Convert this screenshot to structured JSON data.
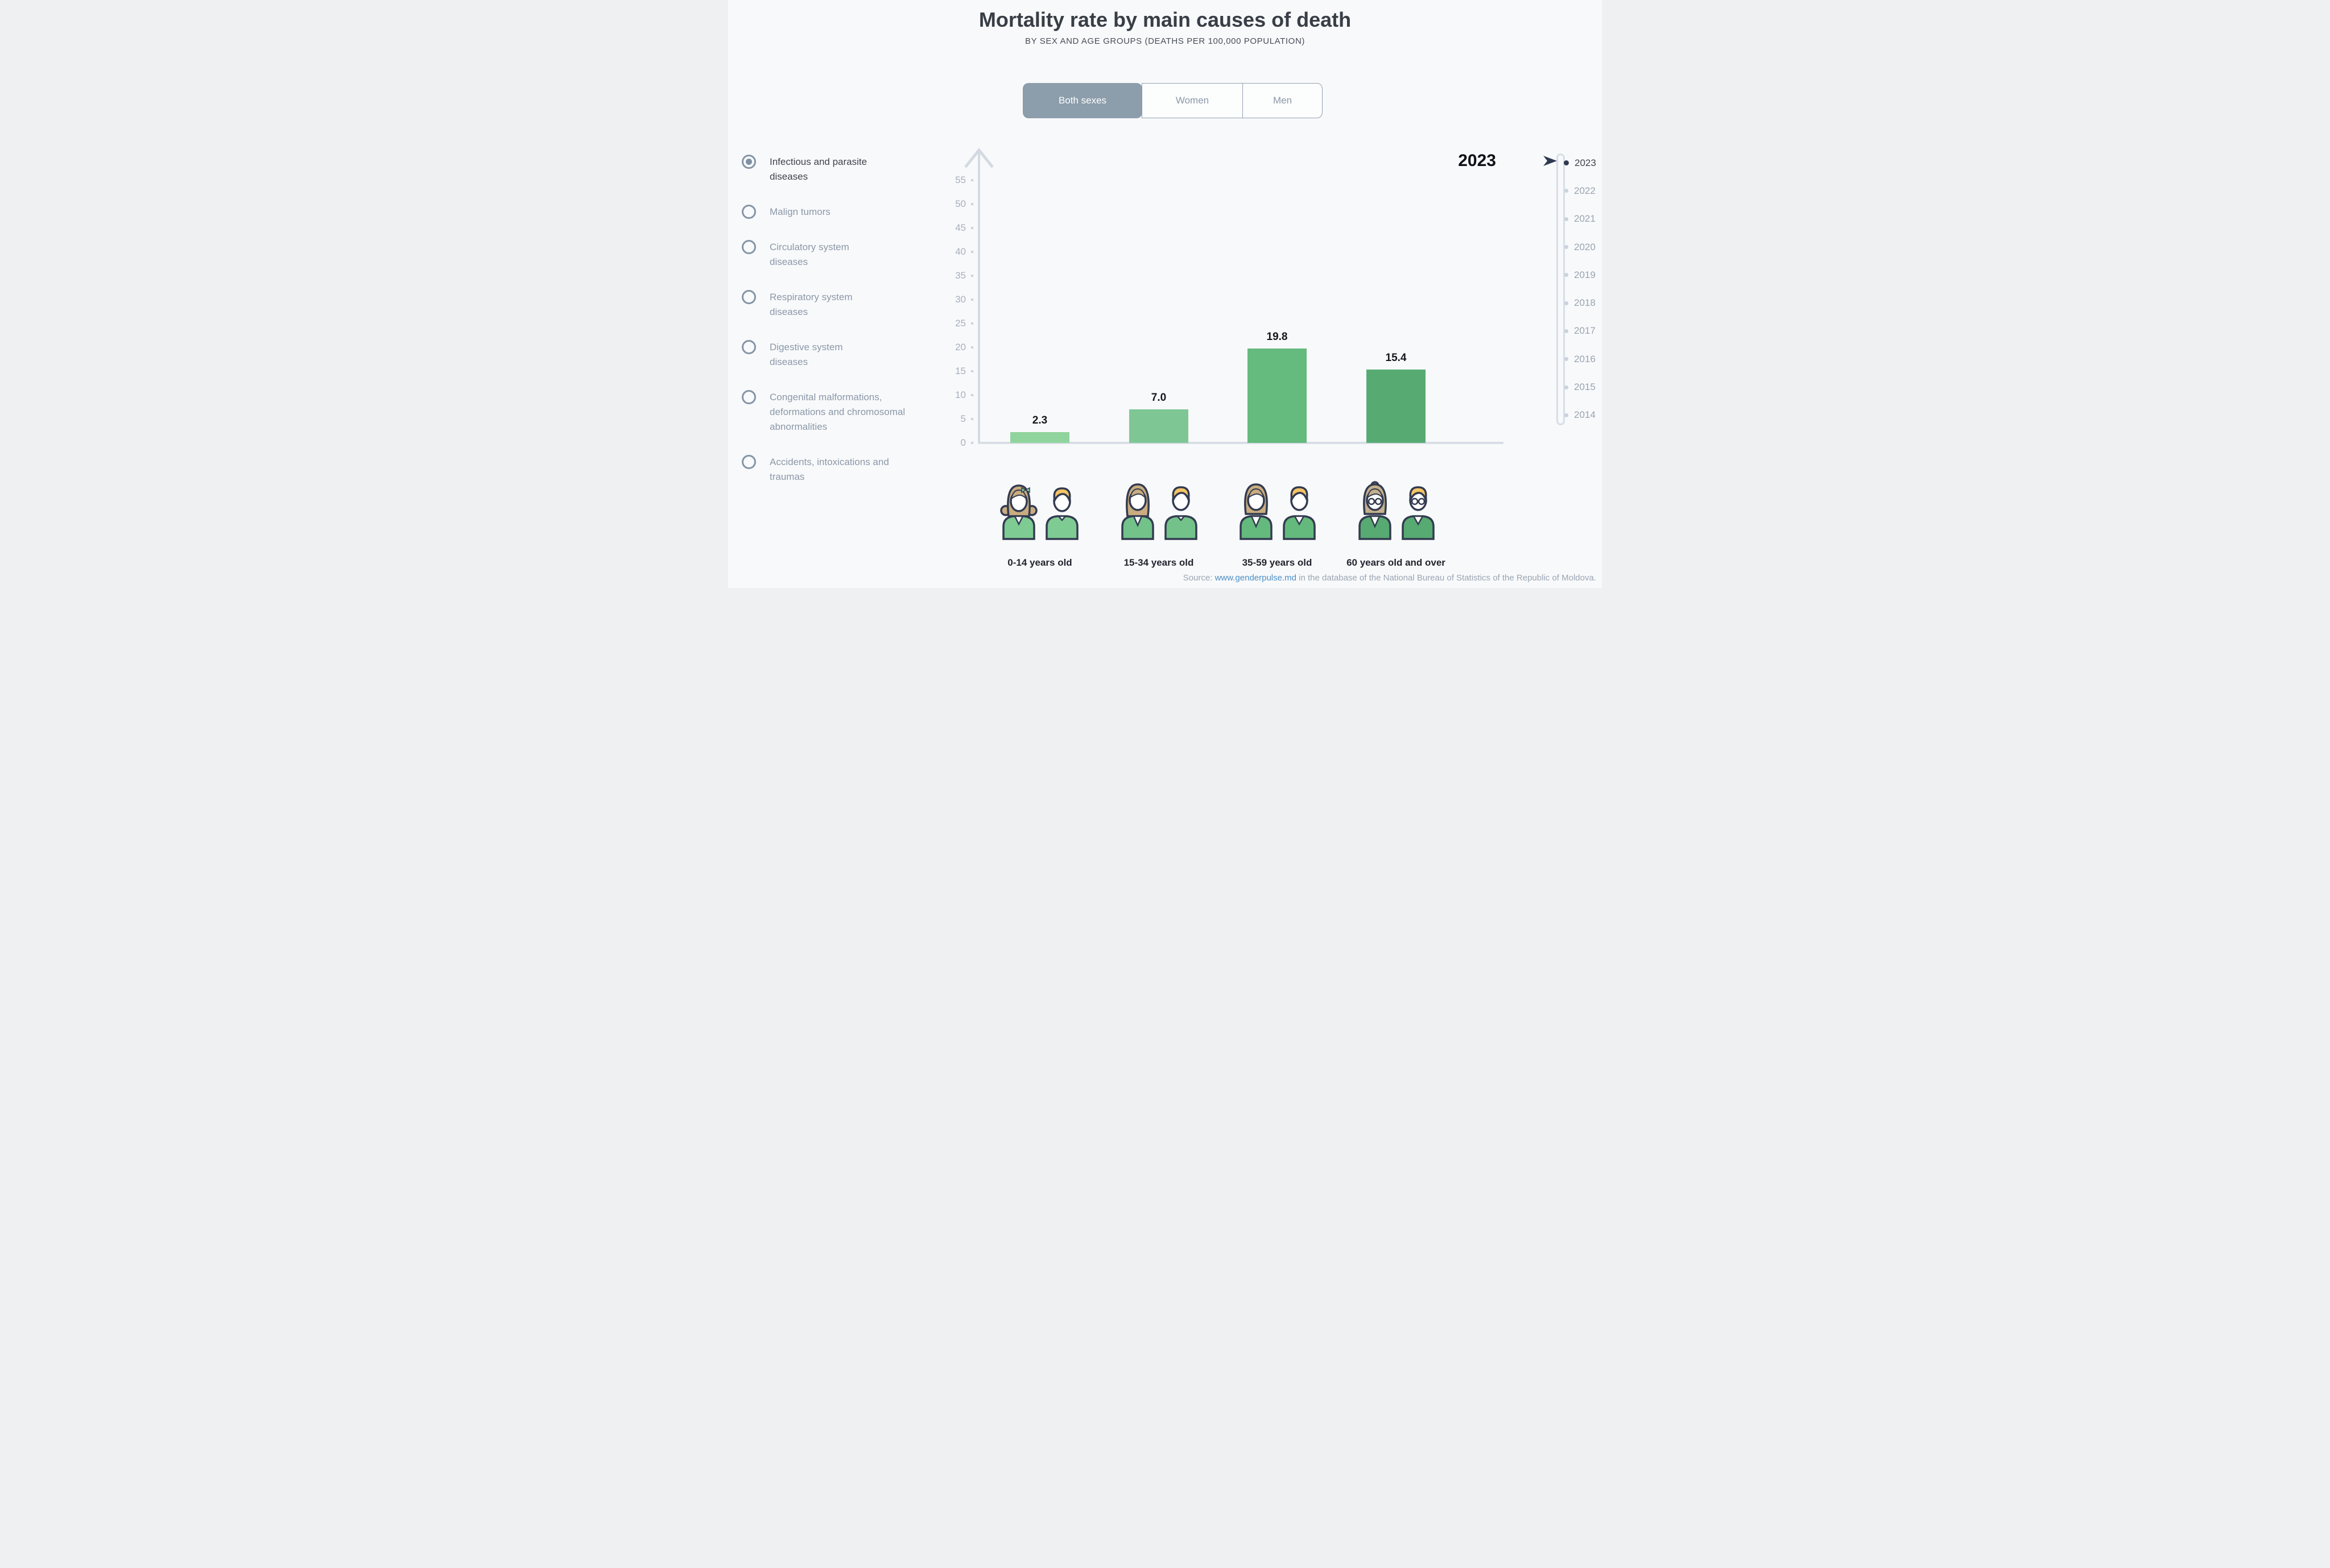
{
  "title": "Mortality rate by main causes of death",
  "subtitle": "BY SEX AND AGE GROUPS (DEATHS PER 100,000 POPULATION)",
  "tabs": [
    {
      "label": "Both sexes",
      "selected": true
    },
    {
      "label": "Women",
      "selected": false
    },
    {
      "label": "Men",
      "selected": false
    }
  ],
  "causes": [
    {
      "label": "Infectious and parasite diseases",
      "selected": true
    },
    {
      "label": "Malign tumors",
      "selected": false
    },
    {
      "label": "Circulatory system diseases",
      "selected": false
    },
    {
      "label": "Respiratory system diseases",
      "selected": false
    },
    {
      "label": "Digestive system diseases",
      "selected": false
    },
    {
      "label": "Congenital malformations, deformations and chromosomal abnormalities",
      "selected": false
    },
    {
      "label": "Accidents, intoxications and traumas",
      "selected": false
    }
  ],
  "chart_data": {
    "type": "bar",
    "title": "Mortality rate by main causes of death",
    "subtitle": "BY SEX AND AGE GROUPS (DEATHS PER 100,000 POPULATION)",
    "categories": [
      "0-14 years old",
      "15-34 years old",
      "35-59 years old",
      "60 years old and over"
    ],
    "values": [
      2.3,
      7.0,
      19.8,
      15.4
    ],
    "value_labels": [
      "2.3",
      "7.0",
      "19.8",
      "15.4"
    ],
    "xlabel": "",
    "ylabel": "",
    "ylim": [
      0,
      55
    ],
    "yticks": [
      0,
      5,
      10,
      15,
      20,
      25,
      30,
      35,
      40,
      45,
      50,
      55
    ],
    "grid": false,
    "legend_position": "none",
    "bar_colors": [
      "#90d49d",
      "#7ec795",
      "#65ba7e",
      "#57ab72"
    ]
  },
  "year_badge": "2023",
  "timeline": {
    "years": [
      {
        "label": "2023",
        "selected": true
      },
      {
        "label": "2022",
        "selected": false
      },
      {
        "label": "2021",
        "selected": false
      },
      {
        "label": "2020",
        "selected": false
      },
      {
        "label": "2019",
        "selected": false
      },
      {
        "label": "2018",
        "selected": false
      },
      {
        "label": "2017",
        "selected": false
      },
      {
        "label": "2016",
        "selected": false
      },
      {
        "label": "2015",
        "selected": false
      },
      {
        "label": "2014",
        "selected": false
      }
    ]
  },
  "source": {
    "prefix": "Source: ",
    "link": "www.genderpulse.md",
    "suffix": " in the database of the National Bureau of Statistics of the Republic of Moldova."
  },
  "colors": {
    "tab_selected_bg": "#8c9dab",
    "axis": "#d3dae2",
    "muted_text": "#8b98a7",
    "dark_text": "#3d434b",
    "timeline_dot": "#c9d3de",
    "timeline_selected": "#2e3a52",
    "link": "#4b8fc6"
  }
}
